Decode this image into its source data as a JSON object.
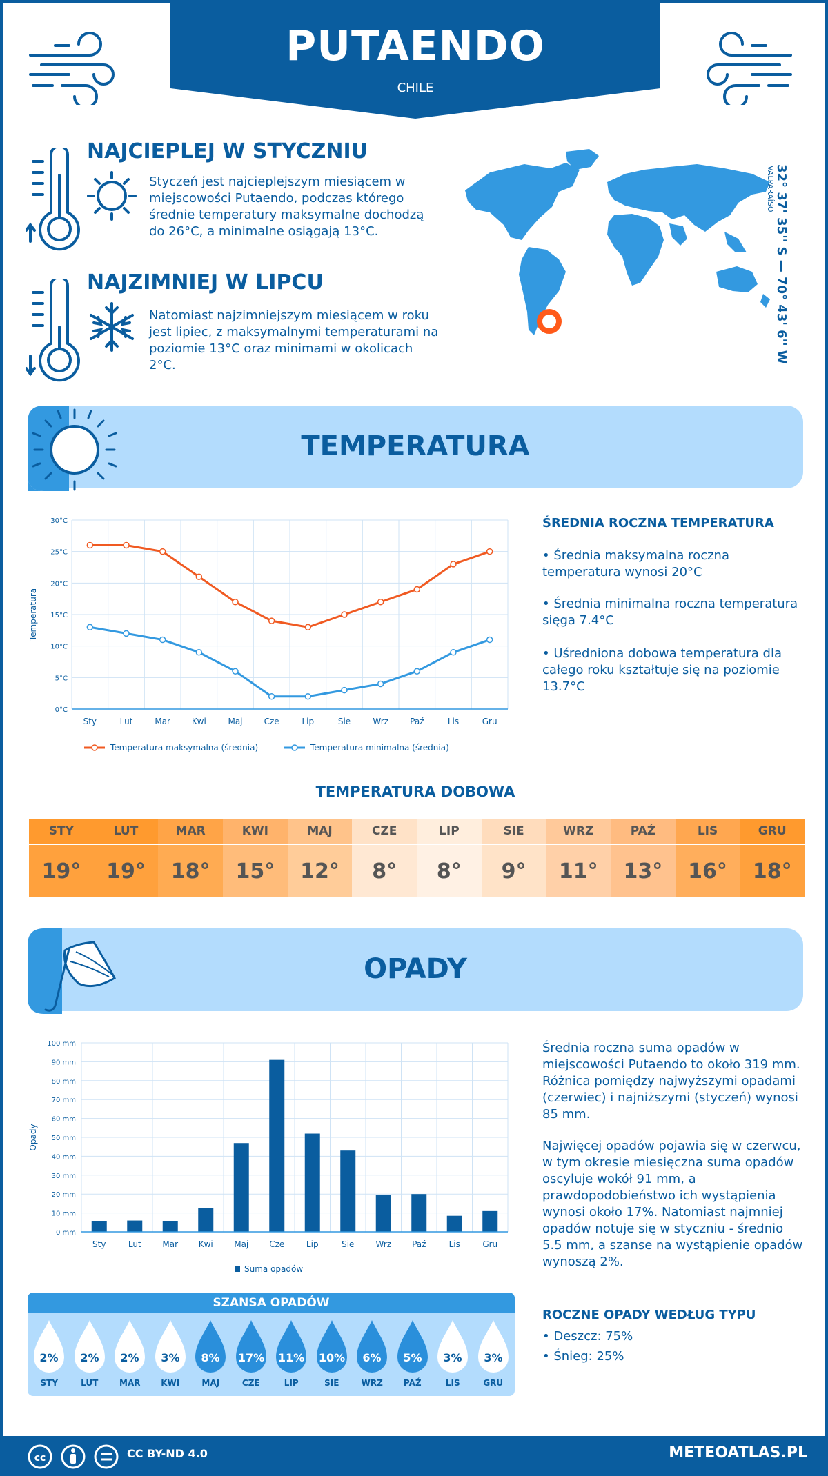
{
  "header": {
    "city": "PUTAENDO",
    "country": "CHILE"
  },
  "facts": {
    "warmest": {
      "title": "NAJCIEPLEJ W STYCZNIU",
      "text": "Styczeń jest najcieplejszym miesiącem w miejscowości Putaendo, podczas którego średnie temperatury maksymalne dochodzą do 26°C, a minimalne osiągają 13°C."
    },
    "coldest": {
      "title": "NAJZIMNIEJ W LIPCU",
      "text": "Natomiast najzimniejszym miesiącem w roku jest lipiec, z maksymalnymi temperaturami na poziomie 13°C oraz minimami w okolicach 2°C."
    }
  },
  "location": {
    "coordinates": "32° 37' 35'' S — 70° 43' 6'' W",
    "region": "VALPARAÍSO"
  },
  "sections": {
    "temperature_title": "TEMPERATURA",
    "precipitation_title": "OPADY"
  },
  "temp_side": {
    "heading": "ŚREDNIA ROCZNA TEMPERATURA",
    "p1": "• Średnia maksymalna roczna temperatura wynosi 20°C",
    "p2": "• Średnia minimalna roczna temperatura sięga 7.4°C",
    "p3": "• Uśredniona dobowa temperatura dla całego roku kształtuje się na poziomie 13.7°C"
  },
  "daily_temp": {
    "title": "TEMPERATURA DOBOWA",
    "months": [
      "STY",
      "LUT",
      "MAR",
      "KWI",
      "MAJ",
      "CZE",
      "LIP",
      "SIE",
      "WRZ",
      "PAŹ",
      "LIS",
      "GRU"
    ],
    "values": [
      "19°",
      "19°",
      "18°",
      "15°",
      "12°",
      "8°",
      "8°",
      "9°",
      "11°",
      "13°",
      "16°",
      "18°"
    ],
    "header_colors": [
      "#ff9a2e",
      "#ff9a2e",
      "#ffa447",
      "#ffb36b",
      "#ffc38a",
      "#ffe2c7",
      "#ffeedd",
      "#ffdcbc",
      "#ffc99a",
      "#ffbb80",
      "#ffa750",
      "#ff9a2e"
    ],
    "value_colors": [
      "#ffa13d",
      "#ffa13d",
      "#ffab52",
      "#ffbc7a",
      "#ffcc99",
      "#ffe8d3",
      "#fff1e4",
      "#ffe3c8",
      "#ffd0a8",
      "#ffc28e",
      "#ffae5c",
      "#ffa13d"
    ]
  },
  "precip_side": {
    "p1": "Średnia roczna suma opadów w miejscowości Putaendo to około 319 mm. Różnica pomiędzy najwyższymi opadami (czerwiec) i najniższymi (styczeń) wynosi 85 mm.",
    "p2": "Najwięcej opadów pojawia się w czerwcu, w tym okresie miesięczna suma opadów oscyluje wokół 91 mm, a prawdopodobieństwo ich wystąpienia wynosi około 17%. Natomiast najmniej opadów notuje się w styczniu - średnio 5.5 mm, a szanse na wystąpienie opadów wynoszą 2%."
  },
  "precip_chance": {
    "title": "SZANSA OPADÓW",
    "months": [
      "STY",
      "LUT",
      "MAR",
      "KWI",
      "MAJ",
      "CZE",
      "LIP",
      "SIE",
      "WRZ",
      "PAŹ",
      "LIS",
      "GRU"
    ],
    "values": [
      "2%",
      "2%",
      "2%",
      "3%",
      "8%",
      "17%",
      "11%",
      "10%",
      "6%",
      "5%",
      "3%",
      "3%"
    ],
    "percent": [
      2,
      2,
      2,
      3,
      8,
      17,
      11,
      10,
      6,
      5,
      3,
      3
    ]
  },
  "precip_type": {
    "heading": "ROCZNE OPADY WEDŁUG TYPU",
    "rain": "• Deszcz: 75%",
    "snow": "• Śnieg: 25%"
  },
  "footer": {
    "license": "CC BY-ND 4.0",
    "site": "METEOATLAS.PL"
  },
  "chart_data": [
    {
      "type": "line",
      "x": [
        "Sty",
        "Lut",
        "Mar",
        "Kwi",
        "Maj",
        "Cze",
        "Lip",
        "Sie",
        "Wrz",
        "Paź",
        "Lis",
        "Gru"
      ],
      "series": [
        {
          "name": "Temperatura maksymalna (średnia)",
          "values": [
            26,
            26,
            25,
            21,
            17,
            14,
            13,
            15,
            17,
            19,
            23,
            25
          ],
          "color": "#f05a22"
        },
        {
          "name": "Temperatura minimalna (średnia)",
          "values": [
            13,
            12,
            11,
            9,
            6,
            2,
            2,
            3,
            4,
            6,
            9,
            11
          ],
          "color": "#3399e0"
        }
      ],
      "ylabel": "Temperatura",
      "ylim": [
        0,
        30
      ],
      "yticks": [
        "0°C",
        "5°C",
        "10°C",
        "15°C",
        "20°C",
        "25°C",
        "30°C"
      ],
      "grid": true,
      "legend": "bottom"
    },
    {
      "type": "bar",
      "categories": [
        "Sty",
        "Lut",
        "Mar",
        "Kwi",
        "Maj",
        "Cze",
        "Lip",
        "Sie",
        "Wrz",
        "Paź",
        "Lis",
        "Gru"
      ],
      "series": [
        {
          "name": "Suma opadów",
          "values": [
            5.5,
            6,
            5.5,
            12.5,
            47,
            91,
            52,
            43,
            19.5,
            20,
            8.5,
            11
          ],
          "color": "#0a5d9f"
        }
      ],
      "ylabel": "Opady",
      "ylim": [
        0,
        100
      ],
      "yticks": [
        "0 mm",
        "10 mm",
        "20 mm",
        "30 mm",
        "40 mm",
        "50 mm",
        "60 mm",
        "70 mm",
        "80 mm",
        "90 mm",
        "100 mm"
      ],
      "grid": true,
      "legend": "bottom"
    }
  ]
}
